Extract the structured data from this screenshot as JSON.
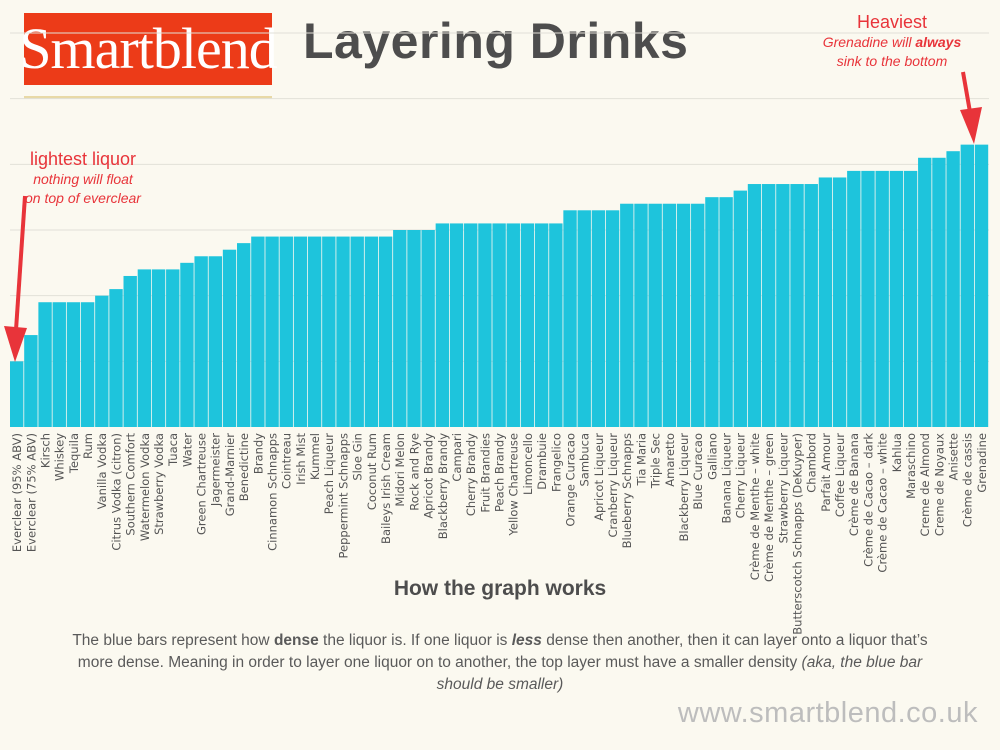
{
  "header": {
    "logo_text": "Smartblend",
    "title": "Layering Drinks"
  },
  "annotations": {
    "heaviest": {
      "title": "Heaviest",
      "line1_pre": "Grenadine will ",
      "line1_em": "always",
      "line2": "sink to the bottom"
    },
    "lightest": {
      "title": "lightest liquor",
      "line1": "nothing will float",
      "line2": "on top of everclear"
    }
  },
  "footer": {
    "heading": "How the graph works",
    "p1": "The blue bars represent how ",
    "p_dense": "dense",
    "p2": " the liquor is. If one liquor is ",
    "p_less": "less",
    "p3": " dense then another, then it can layer onto a liquor that’s more dense. Meaning in order to layer one liquor on to another, the top layer must have a smaller density ",
    "p_note": "(aka, the blue bar should be smaller)",
    "url": "www.smartblend.co.uk"
  },
  "chart_data": {
    "type": "bar",
    "bar_color": "#1ec4dc",
    "grid": true,
    "ylim": [
      0,
      6
    ],
    "categories": [
      "Everclear (95% ABV)",
      "Everclear (75% ABV)",
      "Kirsch",
      "Whiskey",
      "Tequila",
      "Rum",
      "Vanilla Vodka",
      "Citrus Vodka (citron)",
      "Southern Comfort",
      "Watermelon Vodka",
      "Strawberry Vodka",
      "Tuaca",
      "Water",
      "Green Chartreuse",
      "Jagermeister",
      "Grand-Marnier",
      "Benedictine",
      "Brandy",
      "Cinnamon Schnapps",
      "Cointreau",
      "Irish Mist",
      "Kummel",
      "Peach Liqueur",
      "Peppermint Schnapps",
      "Sloe Gin",
      "Coconut Rum",
      "Baileys Irish Cream",
      "Midori Melon",
      "Rock and Rye",
      "Apricot Brandy",
      "Blackberry Brandy",
      "Campari",
      "Cherry Brandy",
      "Fruit Brandies",
      "Peach Brandy",
      "Yellow Chartreuse",
      "Limoncello",
      "Drambuie",
      "Frangelico",
      "Orange Curacao",
      "Sambuca",
      "Apricot Liqueur",
      "Cranberry Liqueur",
      "Blueberry Schnapps",
      "Tia Maria",
      "Triple Sec",
      "Amaretto",
      "Blackberry Liqueur",
      "Blue Curacao",
      "Galliano",
      "Banana Liqueur",
      "Cherry Liqueur",
      "Crème de Menthe – white",
      "Crème de Menthe – green",
      "Strawberry Liqueur",
      "Butterscotch Schnapps (DeKuyper)",
      "Chambord",
      "Parfait Amour",
      "Coffee Liqueur",
      "Crème de Banana",
      "Crème de Cacao – dark",
      "Crème de Cacao – white",
      "Kahlua",
      "Maraschino",
      "Creme de Almond",
      "Creme de Noyaux",
      "Anisette",
      "Crème de cassis",
      "Grenadine"
    ],
    "values": [
      1.0,
      1.4,
      1.9,
      1.9,
      1.9,
      1.9,
      2.0,
      2.1,
      2.3,
      2.4,
      2.4,
      2.4,
      2.5,
      2.6,
      2.6,
      2.7,
      2.8,
      2.9,
      2.9,
      2.9,
      2.9,
      2.9,
      2.9,
      2.9,
      2.9,
      2.9,
      2.9,
      3.0,
      3.0,
      3.0,
      3.1,
      3.1,
      3.1,
      3.1,
      3.1,
      3.1,
      3.1,
      3.1,
      3.1,
      3.3,
      3.3,
      3.3,
      3.3,
      3.4,
      3.4,
      3.4,
      3.4,
      3.4,
      3.4,
      3.5,
      3.5,
      3.6,
      3.7,
      3.7,
      3.7,
      3.7,
      3.7,
      3.8,
      3.8,
      3.9,
      3.9,
      3.9,
      3.9,
      3.9,
      4.1,
      4.1,
      4.2,
      4.3,
      4.3
    ]
  }
}
